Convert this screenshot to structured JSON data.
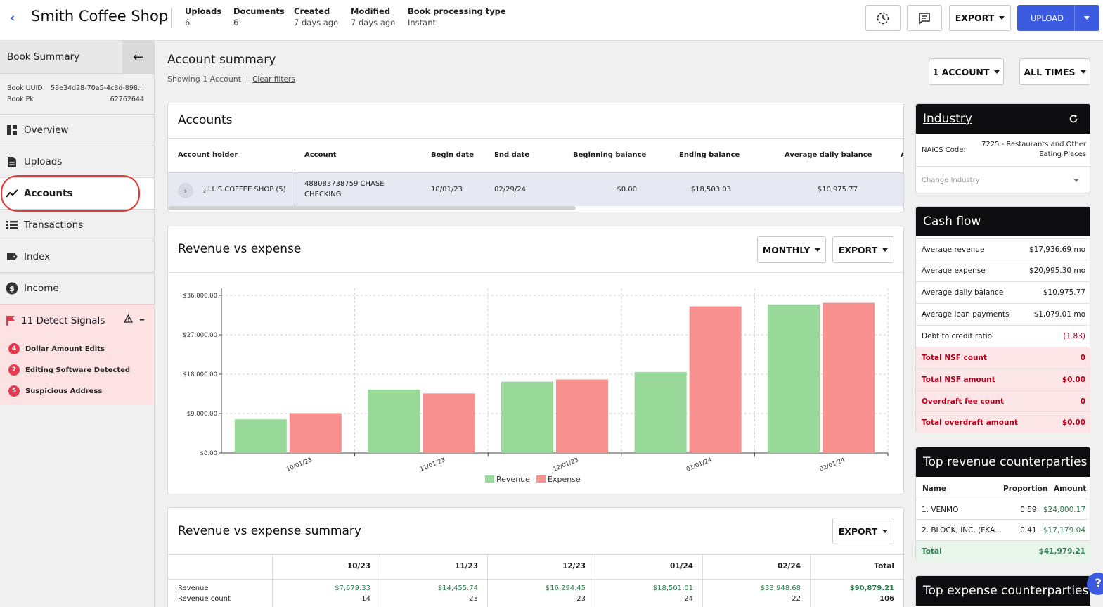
{
  "header": {
    "title": "Smith Coffee Shop",
    "meta": [
      {
        "key": "Uploads",
        "value": "6"
      },
      {
        "key": "Documents",
        "value": "6"
      },
      {
        "key": "Created",
        "value": "7 days ago"
      },
      {
        "key": "Modified",
        "value": "7 days ago"
      },
      {
        "key": "Book processing type",
        "value": "Instant"
      }
    ],
    "export_label": "EXPORT",
    "upload_label": "UPLOAD"
  },
  "sidebar": {
    "heading": "Book Summary",
    "uuid_label": "Book UUID",
    "uuid_value": "58e34d28-70a5-4c8d-898...",
    "pk_label": "Book Pk",
    "pk_value": "62762644",
    "items": [
      {
        "label": "Overview",
        "icon": "dashboard-icon"
      },
      {
        "label": "Uploads",
        "icon": "document-icon"
      },
      {
        "label": "Accounts",
        "icon": "trend-line-icon"
      },
      {
        "label": "Transactions",
        "icon": "list-icon"
      },
      {
        "label": "Index",
        "icon": "tag-icon"
      },
      {
        "label": "Income",
        "icon": "dollar-circle-icon"
      }
    ],
    "signals": {
      "label": "11 Detect Signals",
      "items": [
        {
          "count": "4",
          "label": "Dollar Amount Edits"
        },
        {
          "count": "2",
          "label": "Editing Software Detected"
        },
        {
          "count": "5",
          "label": "Suspicious Address"
        }
      ]
    }
  },
  "main": {
    "title": "Account summary",
    "showing": "Showing 1 Account |",
    "clear_filters": "Clear filters",
    "account_filter": "1 ACCOUNT",
    "time_filter": "ALL TIMES",
    "accounts": {
      "title": "Accounts",
      "columns": [
        "Account holder",
        "Account",
        "Begin date",
        "End date",
        "Beginning balance",
        "Ending balance",
        "Average daily balance",
        "A"
      ],
      "row": {
        "holder": "JILL'S COFFEE SHOP (5)",
        "account_line1": "488083738759 CHASE",
        "account_line2": "CHECKING",
        "begin": "10/01/23",
        "end": "02/29/24",
        "beginning_balance": "$0.00",
        "ending_balance": "$18,503.03",
        "average_daily_balance": "$10,975.77"
      }
    },
    "rve": {
      "title": "Revenue vs expense",
      "period_label": "MONTHLY",
      "export_label": "EXPORT"
    },
    "summary": {
      "title": "Revenue vs expense summary",
      "export_label": "EXPORT",
      "columns": [
        "10/23",
        "11/23",
        "12/23",
        "01/24",
        "02/24",
        "Total"
      ],
      "revenue_label": "Revenue",
      "revenue_values": [
        "$7,679.33",
        "$14,455.74",
        "$16,294.45",
        "$18,501.01",
        "$33,948.68",
        "$90,879.21"
      ],
      "count_label": "Revenue count",
      "count_values": [
        "14",
        "23",
        "23",
        "24",
        "22",
        "106"
      ]
    }
  },
  "chart_data": {
    "type": "bar",
    "categories": [
      "10/01/23",
      "11/01/23",
      "12/01/23",
      "01/01/24",
      "02/01/24"
    ],
    "series": [
      {
        "name": "Revenue",
        "color": "#98d898",
        "values": [
          7679.33,
          14455.74,
          16294.45,
          18501.01,
          33948.68
        ]
      },
      {
        "name": "Expense",
        "color": "#f89090",
        "values": [
          9100,
          13600,
          16800,
          33500,
          34300
        ]
      }
    ],
    "y_ticks": [
      "$0.00",
      "$9,000.00",
      "$18,000.00",
      "$27,000.00",
      "$36,000.00"
    ],
    "ylim": [
      0,
      36000
    ],
    "grid": true,
    "legend": "bottom"
  },
  "right": {
    "industry": {
      "title": "Industry",
      "naics_label": "NAICS Code:",
      "naics_line1": "7225 - Restaurants and Other",
      "naics_line2": "Eating Places",
      "change_placeholder": "Change Industry"
    },
    "cashflow": {
      "title": "Cash flow",
      "rows": [
        {
          "label": "Average revenue",
          "value": "$17,936.69 mo"
        },
        {
          "label": "Average expense",
          "value": "$20,995.30 mo"
        },
        {
          "label": "Average daily balance",
          "value": "$10,975.77"
        },
        {
          "label": "Average loan payments",
          "value": "$1,079.01 mo"
        },
        {
          "label": "Debt to credit ratio",
          "value": "(1.83)"
        }
      ],
      "alert_rows": [
        {
          "label": "Total NSF count",
          "value": "0"
        },
        {
          "label": "Total NSF amount",
          "value": "$0.00"
        },
        {
          "label": "Overdraft fee count",
          "value": "0"
        },
        {
          "label": "Total overdraft amount",
          "value": "$0.00"
        }
      ]
    },
    "top_revenue": {
      "title": "Top revenue counterparties",
      "columns": [
        "Name",
        "Proportion",
        "Amount"
      ],
      "rows": [
        {
          "name": "1. VENMO",
          "proportion": "0.59",
          "amount": "$24,800.17"
        },
        {
          "name": "2. BLOCK, INC. (FKA...",
          "proportion": "0.41",
          "amount": "$17,179.04"
        }
      ],
      "total_label": "Total",
      "total_value": "$41,979.21"
    },
    "top_expense": {
      "title": "Top expense counterparties"
    }
  },
  "help_label": "?"
}
